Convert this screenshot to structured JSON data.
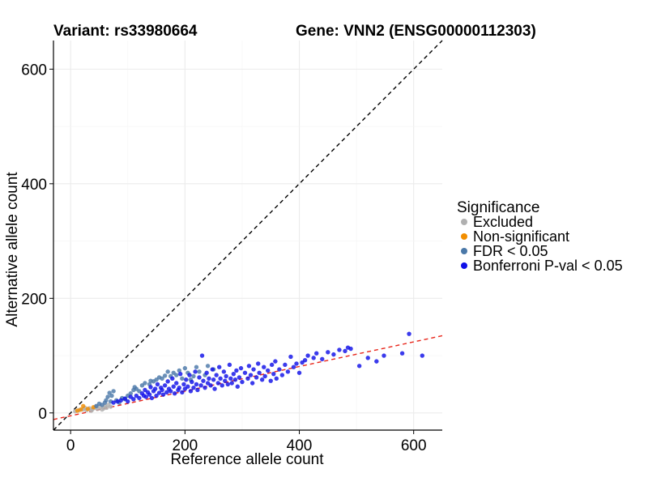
{
  "chart_data": {
    "type": "scatter",
    "title": "Variant: rs33980664",
    "subtitle": "Gene: VNN2 (ENSG00000112303)",
    "xlabel": "Reference allele count",
    "ylabel": "Alternative allele count",
    "xlim": [
      -30,
      650
    ],
    "ylim": [
      -30,
      650
    ],
    "x_ticks": [
      0,
      200,
      400,
      600
    ],
    "y_ticks": [
      0,
      200,
      400,
      600
    ],
    "grid": true,
    "legend": {
      "title": "Significance",
      "placement": "right",
      "entries": [
        {
          "name": "Excluded",
          "color": "#b0b0b0"
        },
        {
          "name": "Non-significant",
          "color": "#f28e00"
        },
        {
          "name": "FDR < 0.05",
          "color": "#4a78a8"
        },
        {
          "name": "Bonferroni P-val < 0.05",
          "color": "#1010e8"
        }
      ]
    },
    "reference_lines": [
      {
        "kind": "identity",
        "style": "dashed",
        "color": "#000000",
        "slope": 1,
        "intercept": 0
      },
      {
        "kind": "fit",
        "style": "dashed",
        "color": "#e8251a",
        "slope": 0.215,
        "intercept": -5
      }
    ],
    "series": [
      {
        "name": "Excluded",
        "color": "#b0b0b0",
        "points": [
          [
            8,
            3
          ],
          [
            15,
            5
          ],
          [
            22,
            6
          ],
          [
            28,
            5
          ],
          [
            33,
            8
          ],
          [
            38,
            6
          ],
          [
            42,
            9
          ],
          [
            47,
            7
          ],
          [
            52,
            10
          ],
          [
            55,
            6
          ],
          [
            60,
            12
          ],
          [
            63,
            9
          ],
          [
            66,
            14
          ],
          [
            70,
            11
          ],
          [
            36,
            4
          ],
          [
            45,
            12
          ],
          [
            58,
            8
          ],
          [
            25,
            9
          ]
        ]
      },
      {
        "name": "Non-significant",
        "color": "#f28e00",
        "points": [
          [
            12,
            4
          ],
          [
            18,
            6
          ],
          [
            22,
            12
          ],
          [
            30,
            7
          ],
          [
            40,
            10
          ]
        ]
      },
      {
        "name": "FDR < 0.05",
        "color": "#4a78a8",
        "points": [
          [
            45,
            12
          ],
          [
            50,
            16
          ],
          [
            55,
            14
          ],
          [
            60,
            18
          ],
          [
            62,
            22
          ],
          [
            65,
            28
          ],
          [
            68,
            35
          ],
          [
            70,
            20
          ],
          [
            72,
            30
          ],
          [
            75,
            38
          ],
          [
            80,
            22
          ],
          [
            85,
            18
          ],
          [
            90,
            26
          ],
          [
            95,
            24
          ],
          [
            100,
            30
          ],
          [
            105,
            34
          ],
          [
            110,
            40
          ],
          [
            112,
            45
          ],
          [
            115,
            42
          ],
          [
            120,
            38
          ],
          [
            125,
            48
          ],
          [
            130,
            52
          ],
          [
            138,
            50
          ],
          [
            140,
            56
          ],
          [
            145,
            55
          ],
          [
            150,
            58
          ],
          [
            155,
            62
          ],
          [
            160,
            60
          ],
          [
            165,
            65
          ],
          [
            170,
            72
          ],
          [
            175,
            64
          ],
          [
            180,
            70
          ],
          [
            185,
            66
          ],
          [
            190,
            74
          ],
          [
            195,
            60
          ],
          [
            200,
            78
          ],
          [
            205,
            70
          ],
          [
            210,
            58
          ],
          [
            215,
            64
          ],
          [
            220,
            80
          ],
          [
            225,
            72
          ],
          [
            235,
            66
          ],
          [
            240,
            82
          ],
          [
            250,
            76
          ]
        ]
      },
      {
        "name": "Bonferroni P-val < 0.05",
        "color": "#1010e8",
        "points": [
          [
            75,
            18
          ],
          [
            82,
            20
          ],
          [
            88,
            22
          ],
          [
            95,
            25
          ],
          [
            100,
            20
          ],
          [
            105,
            28
          ],
          [
            110,
            24
          ],
          [
            115,
            30
          ],
          [
            120,
            26
          ],
          [
            125,
            34
          ],
          [
            128,
            30
          ],
          [
            130,
            40
          ],
          [
            132,
            28
          ],
          [
            135,
            36
          ],
          [
            138,
            32
          ],
          [
            140,
            45
          ],
          [
            142,
            26
          ],
          [
            145,
            38
          ],
          [
            148,
            42
          ],
          [
            150,
            30
          ],
          [
            152,
            50
          ],
          [
            155,
            35
          ],
          [
            158,
            44
          ],
          [
            160,
            40
          ],
          [
            162,
            32
          ],
          [
            165,
            48
          ],
          [
            168,
            36
          ],
          [
            170,
            55
          ],
          [
            172,
            42
          ],
          [
            175,
            38
          ],
          [
            178,
            60
          ],
          [
            180,
            46
          ],
          [
            182,
            34
          ],
          [
            185,
            52
          ],
          [
            188,
            40
          ],
          [
            190,
            44
          ],
          [
            192,
            68
          ],
          [
            195,
            36
          ],
          [
            198,
            50
          ],
          [
            200,
            42
          ],
          [
            202,
            58
          ],
          [
            205,
            46
          ],
          [
            208,
            66
          ],
          [
            210,
            38
          ],
          [
            212,
            54
          ],
          [
            215,
            44
          ],
          [
            218,
            72
          ],
          [
            220,
            50
          ],
          [
            222,
            40
          ],
          [
            225,
            62
          ],
          [
            228,
            48
          ],
          [
            230,
            100
          ],
          [
            232,
            56
          ],
          [
            235,
            44
          ],
          [
            238,
            70
          ],
          [
            240,
            52
          ],
          [
            242,
            60
          ],
          [
            245,
            48
          ],
          [
            248,
            76
          ],
          [
            250,
            58
          ],
          [
            252,
            42
          ],
          [
            255,
            66
          ],
          [
            258,
            52
          ],
          [
            260,
            80
          ],
          [
            262,
            60
          ],
          [
            265,
            48
          ],
          [
            268,
            72
          ],
          [
            270,
            56
          ],
          [
            272,
            64
          ],
          [
            275,
            50
          ],
          [
            278,
            84
          ],
          [
            280,
            60
          ],
          [
            282,
            52
          ],
          [
            285,
            68
          ],
          [
            288,
            58
          ],
          [
            290,
            74
          ],
          [
            292,
            46
          ],
          [
            295,
            62
          ],
          [
            298,
            78
          ],
          [
            300,
            54
          ],
          [
            305,
            70
          ],
          [
            310,
            60
          ],
          [
            312,
            82
          ],
          [
            315,
            66
          ],
          [
            318,
            52
          ],
          [
            320,
            76
          ],
          [
            325,
            62
          ],
          [
            328,
            86
          ],
          [
            330,
            70
          ],
          [
            335,
            58
          ],
          [
            338,
            80
          ],
          [
            340,
            64
          ],
          [
            345,
            74
          ],
          [
            350,
            56
          ],
          [
            352,
            84
          ],
          [
            355,
            68
          ],
          [
            358,
            90
          ],
          [
            360,
            60
          ],
          [
            365,
            76
          ],
          [
            370,
            66
          ],
          [
            375,
            84
          ],
          [
            380,
            72
          ],
          [
            385,
            98
          ],
          [
            390,
            80
          ],
          [
            395,
            86
          ],
          [
            400,
            70
          ],
          [
            405,
            88
          ],
          [
            410,
            92
          ],
          [
            415,
            100
          ],
          [
            425,
            96
          ],
          [
            430,
            104
          ],
          [
            440,
            94
          ],
          [
            450,
            106
          ],
          [
            460,
            102
          ],
          [
            470,
            110
          ],
          [
            480,
            108
          ],
          [
            485,
            114
          ],
          [
            490,
            112
          ],
          [
            505,
            82
          ],
          [
            520,
            96
          ],
          [
            535,
            90
          ],
          [
            548,
            100
          ],
          [
            580,
            104
          ],
          [
            592,
            138
          ],
          [
            615,
            100
          ]
        ]
      }
    ]
  }
}
